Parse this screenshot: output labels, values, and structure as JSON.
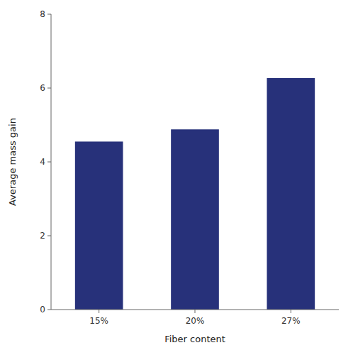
{
  "chart_data": {
    "type": "bar",
    "categories": [
      "15%",
      "20%",
      "27%"
    ],
    "values": [
      4.55,
      4.88,
      6.27
    ],
    "color": "#27317a",
    "xlabel": "Fiber content",
    "ylabel": "Average mass gain",
    "ylim": [
      0,
      8
    ],
    "yticks": [
      0,
      2,
      4,
      6,
      8
    ],
    "grid": false
  }
}
